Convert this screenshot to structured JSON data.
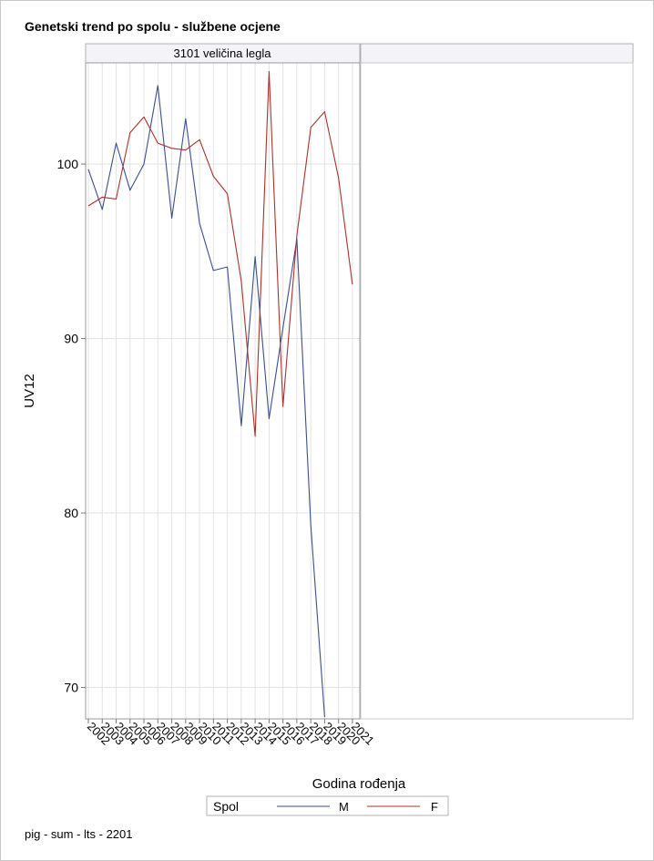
{
  "title": "Genetski trend po spolu - službene ocjene",
  "footnote": "pig - sum - lts - 2201",
  "colors": {
    "M": "#3b4f8a",
    "F": "#a8322d",
    "grid": "#e3e3e3",
    "frame": "#9a9a9a",
    "header_bg": "#f3f3f8"
  },
  "chart_data": {
    "type": "line",
    "panel_label": "3101 veličina legla",
    "xlabel": "Godina rođenja",
    "ylabel": "UV12",
    "x": [
      "2002",
      "2003",
      "2004",
      "2005",
      "2006",
      "2007",
      "2008",
      "2009",
      "2010",
      "2011",
      "2012",
      "2013",
      "2014",
      "2015",
      "2016",
      "2017",
      "2018",
      "2019",
      "2020",
      "2021"
    ],
    "yticks": [
      70,
      80,
      90,
      100
    ],
    "ylim": [
      68.2,
      105.8
    ],
    "grid": true,
    "legend": {
      "title": "Spol",
      "placement": "bottom"
    },
    "series": [
      {
        "name": "M",
        "values": [
          99.7,
          97.4,
          101.2,
          98.5,
          100.0,
          104.5,
          96.9,
          102.6,
          96.6,
          93.9,
          94.1,
          85.0,
          94.7,
          85.4,
          90.6,
          95.7,
          79.3,
          68.3,
          null,
          null
        ]
      },
      {
        "name": "F",
        "values": [
          97.6,
          98.1,
          98.0,
          101.8,
          102.7,
          101.2,
          100.9,
          100.8,
          101.4,
          99.3,
          98.3,
          93.3,
          84.4,
          105.3,
          86.1,
          95.9,
          102.1,
          103.0,
          99.2,
          93.1
        ]
      }
    ]
  }
}
